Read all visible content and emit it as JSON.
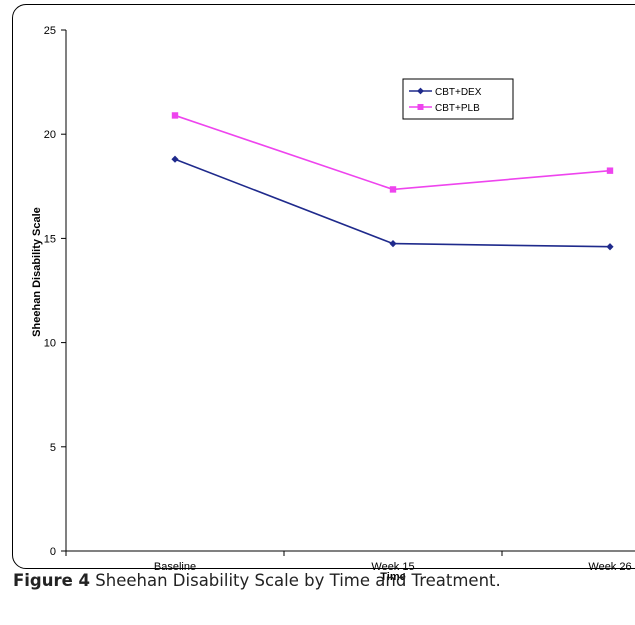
{
  "caption": {
    "label": "Figure 4",
    "text": "Sheehan Disability Scale by Time and Treatment",
    "period": "."
  },
  "chart_data": {
    "type": "line",
    "title": "",
    "xlabel": "Time",
    "ylabel": "Sheehan Disability Scale",
    "categories": [
      "Baseline",
      "Week 15",
      "Week 26"
    ],
    "ylim": [
      0,
      25
    ],
    "yticks": [
      0,
      5,
      10,
      15,
      20,
      25
    ],
    "grid": false,
    "legend_position": "top-right",
    "series": [
      {
        "name": "CBT+DEX",
        "values": [
          18.8,
          14.75,
          14.6
        ],
        "color": "#1f2a8c",
        "marker": "diamond"
      },
      {
        "name": "CBT+PLB",
        "values": [
          20.9,
          17.35,
          18.25
        ],
        "color": "#ee44ee",
        "marker": "square"
      }
    ]
  }
}
